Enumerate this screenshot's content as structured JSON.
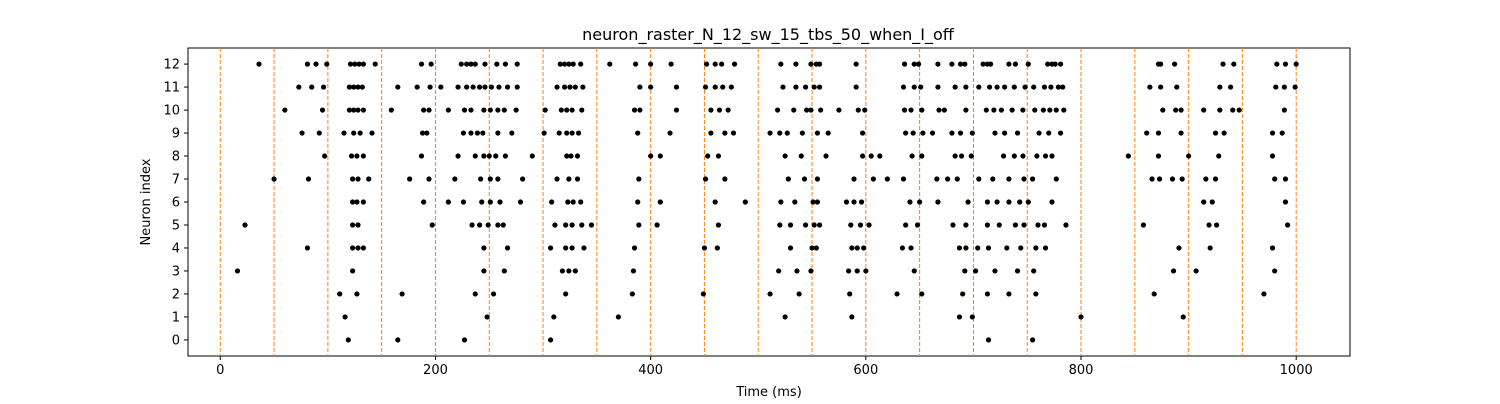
{
  "chart_data": {
    "type": "scatter",
    "title": "neuron_raster_N_12_sw_15_tbs_50_when_I_off",
    "xlabel": "Time (ms)",
    "ylabel": "Neuron index",
    "xlim": [
      -30,
      1050
    ],
    "ylim": [
      -0.7,
      12.7
    ],
    "xticks": [
      0,
      200,
      400,
      600,
      800,
      1000
    ],
    "xtick_labels": [
      "0",
      "200",
      "400",
      "600",
      "800",
      "1000"
    ],
    "yticks": [
      0,
      1,
      2,
      3,
      4,
      5,
      6,
      7,
      8,
      9,
      10,
      11,
      12
    ],
    "ytick_labels": [
      "0",
      "1",
      "2",
      "3",
      "4",
      "5",
      "6",
      "7",
      "8",
      "9",
      "10",
      "11",
      "12"
    ],
    "grid": false,
    "legend": "none",
    "colors": {
      "spikes": "#000000",
      "bin_lines": "#ff7f0e"
    },
    "bin_boundaries": [
      0,
      50,
      100,
      150,
      200,
      250,
      300,
      350,
      400,
      450,
      500,
      550,
      600,
      650,
      700,
      750,
      800,
      850,
      900,
      950,
      1000
    ],
    "spikes": [
      {
        "neuron": 12,
        "times": [
          36,
          81,
          89,
          99,
          121,
          125,
          129,
          133,
          144,
          187,
          196,
          224,
          229,
          233,
          237,
          246,
          257,
          265,
          276,
          316,
          320,
          324,
          328,
          335,
          362,
          386,
          400,
          419,
          452,
          460,
          466,
          478,
          521,
          535,
          549,
          554,
          557,
          591,
          636,
          645,
          649,
          667,
          680,
          688,
          692,
          709,
          713,
          716,
          733,
          739,
          751,
          769,
          773,
          776,
          781,
          872,
          874,
          887,
          932,
          942,
          982,
          990,
          1000
        ]
      },
      {
        "neuron": 11,
        "times": [
          73,
          85,
          96,
          120,
          124,
          128,
          132,
          165,
          183,
          195,
          205,
          221,
          229,
          235,
          241,
          246,
          252,
          259,
          267,
          276,
          313,
          320,
          325,
          330,
          337,
          390,
          400,
          424,
          451,
          460,
          467,
          475,
          523,
          535,
          544,
          552,
          557,
          591,
          635,
          645,
          651,
          667,
          683,
          693,
          705,
          715,
          722,
          729,
          738,
          748,
          756,
          766,
          772,
          779,
          783,
          864,
          874,
          889,
          929,
          939,
          981,
          989,
          999
        ]
      },
      {
        "neuron": 10,
        "times": [
          60,
          95,
          120,
          124,
          128,
          133,
          159,
          189,
          194,
          212,
          227,
          233,
          245,
          251,
          258,
          264,
          275,
          302,
          317,
          322,
          327,
          336,
          385,
          390,
          424,
          456,
          464,
          472,
          518,
          533,
          545,
          549,
          558,
          575,
          593,
          599,
          636,
          642,
          652,
          668,
          673,
          693,
          712,
          719,
          726,
          736,
          746,
          757,
          765,
          771,
          777,
          784,
          876,
          888,
          893,
          914,
          929,
          941,
          947,
          989
        ]
      },
      {
        "neuron": 9,
        "times": [
          76,
          92,
          115,
          124,
          130,
          141,
          188,
          192,
          226,
          233,
          239,
          244,
          258,
          271,
          301,
          315,
          322,
          327,
          333,
          388,
          418,
          456,
          469,
          477,
          511,
          520,
          527,
          541,
          555,
          565,
          597,
          637,
          644,
          653,
          662,
          680,
          688,
          699,
          720,
          729,
          741,
          761,
          770,
          781,
          861,
          872,
          893,
          925,
          933,
          978,
          987
        ]
      },
      {
        "neuron": 8,
        "times": [
          97,
          122,
          127,
          133,
          187,
          221,
          237,
          245,
          250,
          256,
          265,
          290,
          322,
          326,
          332,
          400,
          409,
          453,
          463,
          525,
          540,
          563,
          597,
          605,
          613,
          643,
          652,
          683,
          689,
          698,
          728,
          738,
          746,
          759,
          767,
          773,
          844,
          872,
          900,
          928,
          978
        ]
      },
      {
        "neuron": 7,
        "times": [
          50,
          82,
          123,
          128,
          138,
          176,
          194,
          218,
          242,
          251,
          258,
          281,
          313,
          324,
          332,
          389,
          451,
          469,
          528,
          543,
          555,
          589,
          607,
          620,
          635,
          666,
          676,
          685,
          705,
          718,
          733,
          747,
          755,
          777,
          866,
          873,
          885,
          894,
          916,
          925,
          980,
          990
        ]
      },
      {
        "neuron": 6,
        "times": [
          123,
          127,
          133,
          189,
          212,
          226,
          243,
          251,
          260,
          279,
          308,
          323,
          328,
          335,
          388,
          409,
          460,
          488,
          521,
          534,
          551,
          555,
          582,
          589,
          596,
          641,
          650,
          667,
          695,
          713,
          722,
          733,
          743,
          751,
          773,
          914,
          922,
          990
        ]
      },
      {
        "neuron": 5,
        "times": [
          23,
          123,
          128,
          197,
          234,
          241,
          249,
          258,
          263,
          311,
          321,
          327,
          336,
          345,
          389,
          406,
          463,
          520,
          530,
          544,
          552,
          557,
          586,
          595,
          603,
          637,
          648,
          681,
          693,
          713,
          724,
          739,
          747,
          760,
          766,
          786,
          858,
          919,
          926,
          992
        ]
      },
      {
        "neuron": 4,
        "times": [
          81,
          123,
          128,
          133,
          245,
          267,
          307,
          321,
          327,
          338,
          385,
          450,
          462,
          530,
          550,
          554,
          587,
          592,
          598,
          634,
          642,
          687,
          693,
          704,
          714,
          731,
          744,
          758,
          767,
          891,
          920,
          978
        ]
      },
      {
        "neuron": 3,
        "times": [
          16,
          123,
          245,
          264,
          318,
          324,
          330,
          384,
          519,
          536,
          549,
          584,
          592,
          600,
          645,
          692,
          702,
          720,
          741,
          756,
          886,
          907,
          980
        ]
      },
      {
        "neuron": 2,
        "times": [
          111,
          127,
          169,
          237,
          254,
          321,
          383,
          449,
          511,
          538,
          585,
          629,
          652,
          690,
          713,
          733,
          758,
          868,
          970
        ]
      },
      {
        "neuron": 1,
        "times": [
          116,
          248,
          310,
          370,
          525,
          587,
          687,
          699,
          800,
          895
        ]
      },
      {
        "neuron": 0,
        "times": [
          119,
          165,
          227,
          307,
          714,
          755
        ]
      }
    ]
  }
}
